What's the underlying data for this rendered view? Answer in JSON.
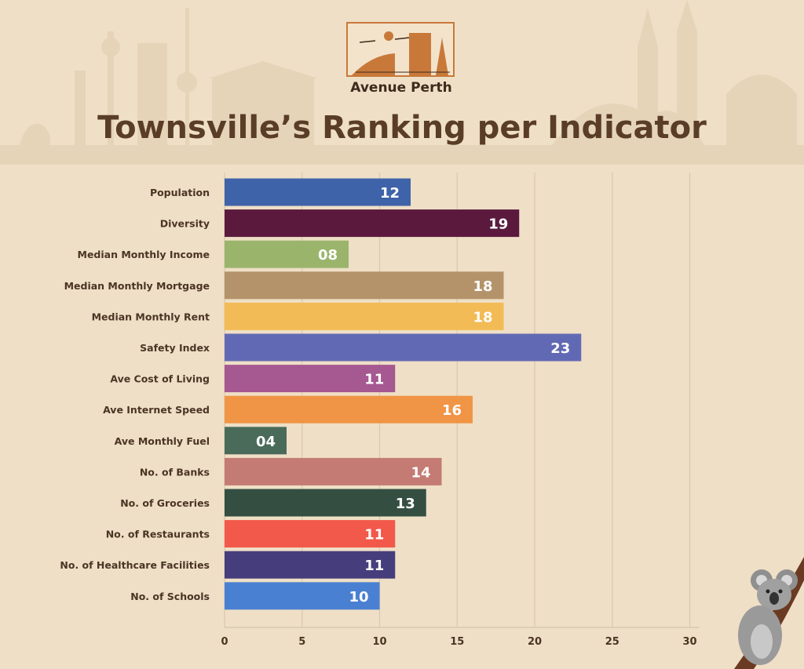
{
  "brand": {
    "name": "Avenue Perth"
  },
  "colors": {
    "background": "#efdfc6",
    "title": "#5a3d27",
    "label": "#4a3424",
    "grid": "#d9c8ad",
    "bar_text": "#ffffff"
  },
  "chart_data": {
    "type": "bar",
    "orientation": "horizontal",
    "title": "Townsville’s Ranking per Indicator",
    "xlabel": "",
    "ylabel": "",
    "xlim": [
      0,
      30
    ],
    "xticks": [
      0,
      5,
      10,
      15,
      20,
      25,
      30
    ],
    "grid": true,
    "categories": [
      "Population",
      "Diversity",
      "Median Monthly Income",
      "Median Monthly Mortgage",
      "Median Monthly Rent",
      "Safety Index",
      "Ave Cost of Living",
      "Ave Internet Speed",
      "Ave Monthly Fuel",
      "No. of Banks",
      "No. of Groceries",
      "No. of Restaurants",
      "No. of Healthcare Facilities",
      "No. of Schools"
    ],
    "values": [
      12,
      19,
      8,
      18,
      18,
      23,
      11,
      16,
      4,
      14,
      13,
      11,
      11,
      10
    ],
    "value_labels": [
      "12",
      "19",
      "08",
      "18",
      "18",
      "23",
      "11",
      "16",
      "04",
      "14",
      "13",
      "11",
      "11",
      "10"
    ],
    "bar_colors": [
      "#3f63a8",
      "#5b1a3d",
      "#9bb46c",
      "#b4936a",
      "#f2bb55",
      "#6269b4",
      "#a65891",
      "#f09545",
      "#4a6b5a",
      "#c47b74",
      "#344f42",
      "#f2594a",
      "#463d7c",
      "#4a80d1"
    ]
  }
}
